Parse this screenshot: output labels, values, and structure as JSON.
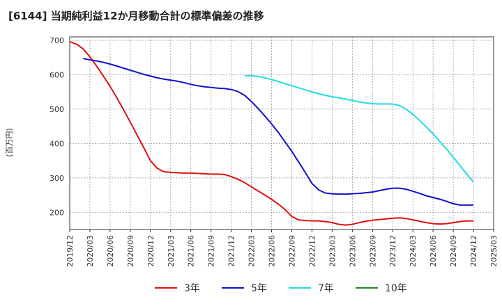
{
  "chart_data": {
    "type": "line",
    "title": "[6144]  当期純利益12か月移動合計の標準偏差の推移",
    "ylabel": "(百万円)",
    "xlabel": "",
    "ylim": [
      150,
      710
    ],
    "yticks": [
      200,
      300,
      400,
      500,
      600,
      700
    ],
    "xticks": [
      "2019/12",
      "2020/03",
      "2020/06",
      "2020/09",
      "2020/12",
      "2021/03",
      "2021/06",
      "2021/09",
      "2021/12",
      "2022/03",
      "2022/06",
      "2022/09",
      "2022/12",
      "2023/03",
      "2023/06",
      "2023/09",
      "2023/12",
      "2024/03",
      "2024/06",
      "2024/09",
      "2024/12",
      "2025/03"
    ],
    "grid": true,
    "legend_position": "bottom",
    "series": [
      {
        "name": "3年",
        "color": "#dd1111",
        "x": [
          "2019/12",
          "2020/01",
          "2020/02",
          "2020/03",
          "2020/04",
          "2020/05",
          "2020/06",
          "2020/07",
          "2020/08",
          "2020/09",
          "2020/10",
          "2020/11",
          "2020/12",
          "2021/01",
          "2021/02",
          "2021/03",
          "2021/04",
          "2021/05",
          "2021/06",
          "2021/07",
          "2021/08",
          "2021/09",
          "2021/10",
          "2021/11",
          "2021/12",
          "2022/01",
          "2022/02",
          "2022/03",
          "2022/04",
          "2022/05",
          "2022/06",
          "2022/07",
          "2022/08",
          "2022/09",
          "2022/10",
          "2022/11",
          "2022/12",
          "2023/01",
          "2023/02",
          "2023/03",
          "2023/04",
          "2023/05",
          "2023/06",
          "2023/07",
          "2023/08",
          "2023/09",
          "2023/10",
          "2023/11",
          "2023/12",
          "2024/01",
          "2024/02",
          "2024/03",
          "2024/04",
          "2024/05",
          "2024/06",
          "2024/07",
          "2024/08",
          "2024/09",
          "2024/10",
          "2024/11",
          "2024/12"
        ],
        "values": [
          696,
          689,
          675,
          652,
          625,
          596,
          566,
          533,
          498,
          462,
          425,
          388,
          350,
          328,
          318,
          316,
          315,
          314,
          314,
          313,
          312,
          311,
          311,
          310,
          304,
          296,
          286,
          274,
          262,
          250,
          238,
          224,
          208,
          188,
          178,
          176,
          175,
          175,
          173,
          170,
          165,
          163,
          165,
          170,
          174,
          177,
          179,
          181,
          183,
          184,
          182,
          178,
          174,
          170,
          167,
          166,
          167,
          170,
          173,
          175,
          175
        ]
      },
      {
        "name": "5年",
        "color": "#1111cc",
        "x": [
          "2020/02",
          "2020/03",
          "2020/04",
          "2020/05",
          "2020/06",
          "2020/07",
          "2020/08",
          "2020/09",
          "2020/10",
          "2020/11",
          "2020/12",
          "2021/01",
          "2021/02",
          "2021/03",
          "2021/04",
          "2021/05",
          "2021/06",
          "2021/07",
          "2021/08",
          "2021/09",
          "2021/10",
          "2021/11",
          "2021/12",
          "2022/01",
          "2022/02",
          "2022/03",
          "2022/04",
          "2022/05",
          "2022/06",
          "2022/07",
          "2022/08",
          "2022/09",
          "2022/10",
          "2022/11",
          "2022/12",
          "2023/01",
          "2023/02",
          "2023/03",
          "2023/04",
          "2023/05",
          "2023/06",
          "2023/07",
          "2023/08",
          "2023/09",
          "2023/10",
          "2023/11",
          "2023/12",
          "2024/01",
          "2024/02",
          "2024/03",
          "2024/04",
          "2024/05",
          "2024/06",
          "2024/07",
          "2024/08",
          "2024/09",
          "2024/10",
          "2024/11",
          "2024/12"
        ],
        "values": [
          647,
          643,
          640,
          636,
          631,
          625,
          619,
          613,
          607,
          601,
          596,
          591,
          587,
          584,
          581,
          577,
          572,
          568,
          565,
          563,
          561,
          560,
          557,
          551,
          540,
          522,
          502,
          480,
          457,
          432,
          405,
          377,
          347,
          316,
          284,
          265,
          256,
          254,
          253,
          253,
          254,
          255,
          257,
          259,
          263,
          267,
          270,
          270,
          267,
          261,
          255,
          248,
          243,
          238,
          232,
          225,
          221,
          221,
          221
        ]
      },
      {
        "name": "7年",
        "color": "#22dddd",
        "x": [
          "2022/02",
          "2022/03",
          "2022/04",
          "2022/05",
          "2022/06",
          "2022/07",
          "2022/08",
          "2022/09",
          "2022/10",
          "2022/11",
          "2022/12",
          "2023/01",
          "2023/02",
          "2023/03",
          "2023/04",
          "2023/05",
          "2023/06",
          "2023/07",
          "2023/08",
          "2023/09",
          "2023/10",
          "2023/11",
          "2023/12",
          "2024/01",
          "2024/02",
          "2024/03",
          "2024/04",
          "2024/05",
          "2024/06",
          "2024/07",
          "2024/08",
          "2024/09",
          "2024/10",
          "2024/11",
          "2024/12"
        ],
        "values": [
          597,
          597,
          595,
          591,
          586,
          580,
          574,
          568,
          562,
          556,
          550,
          545,
          540,
          536,
          533,
          529,
          525,
          521,
          518,
          516,
          515,
          515,
          515,
          510,
          500,
          485,
          467,
          448,
          428,
          406,
          384,
          360,
          336,
          311,
          288
        ]
      },
      {
        "name": "10年",
        "color": "#228822",
        "x": [],
        "values": []
      }
    ]
  }
}
